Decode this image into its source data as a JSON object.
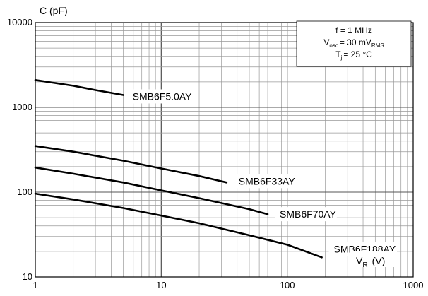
{
  "chart_data": {
    "type": "line",
    "x_scale": "log",
    "y_scale": "log",
    "xlim": [
      1,
      1000
    ],
    "ylim": [
      10,
      10000
    ],
    "x_ticks": [
      "1",
      "10",
      "100",
      "1000"
    ],
    "y_ticks": [
      "10",
      "100",
      "1000",
      "10000"
    ],
    "ylabel": "C (pF)",
    "xlabel": "VR (V)",
    "grid": true,
    "conditions": {
      "freq": "f = 1 MHz",
      "vosc_prefix": "V",
      "vosc_sub": "osc",
      "vosc_mid": "= 30 mV",
      "vosc_sub2": "RMS",
      "tj_prefix": "T",
      "tj_sub": "j",
      "tj_suffix": "= 25 °C"
    },
    "series": [
      {
        "name": "SMB6F5.0AY",
        "x": [
          1,
          2,
          3,
          5
        ],
        "y": [
          2100,
          1800,
          1600,
          1400
        ]
      },
      {
        "name": "SMB6F33AY",
        "x": [
          1,
          2,
          5,
          10,
          20,
          33
        ],
        "y": [
          350,
          300,
          235,
          190,
          155,
          130
        ]
      },
      {
        "name": "SMB6F70AY",
        "x": [
          1,
          2,
          5,
          10,
          20,
          50,
          70
        ],
        "y": [
          195,
          165,
          130,
          105,
          85,
          63,
          55
        ]
      },
      {
        "name": "SMB6F188AY",
        "x": [
          1,
          2,
          5,
          10,
          20,
          50,
          100,
          188
        ],
        "y": [
          96,
          82,
          65,
          53,
          43,
          31,
          24,
          17
        ]
      }
    ]
  }
}
